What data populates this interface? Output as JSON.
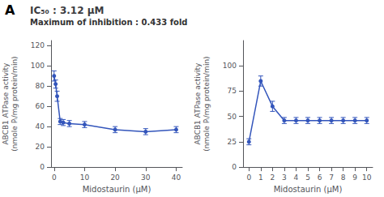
{
  "chart_data": [
    {
      "type": "line",
      "title": "IC₅₀ : 3.12 μM",
      "subtitle": "Maximum of inhibition : 0.433 fold",
      "annotations": [
        "A"
      ],
      "x_label": "Midostaurin (μM)",
      "y_label": "ABCB1 ATPase activity\n(nmole Pᵢ/mg protein/min)",
      "x": [
        0,
        0.5,
        1,
        2,
        3,
        5,
        10,
        20,
        30,
        40
      ],
      "values": [
        90,
        82,
        70,
        45,
        44,
        43,
        42,
        37,
        35,
        37
      ],
      "errors": [
        5,
        4,
        5,
        3,
        3,
        3,
        3,
        3,
        3,
        3
      ],
      "xlim": [
        -1,
        42
      ],
      "ylim": [
        0,
        125
      ],
      "xticks": [
        0,
        10,
        20,
        30,
        40
      ],
      "yticks": [
        0,
        20,
        40,
        60,
        80,
        100,
        120
      ],
      "color": "#3355bb",
      "marker": "circle",
      "line_style": "solid",
      "grid": false
    },
    {
      "type": "line",
      "x_label": "Midostaurin (μM)",
      "y_label": "ABCB1 ATPase activity\n(nmole Pᵢ/mg protein/min)",
      "x": [
        0,
        1,
        2,
        3,
        4,
        5,
        6,
        7,
        8,
        9,
        10
      ],
      "values": [
        25,
        85,
        60,
        46,
        46,
        46,
        46,
        46,
        46,
        46,
        46
      ],
      "errors": [
        3,
        5,
        5,
        3,
        3,
        3,
        3,
        3,
        3,
        3,
        3
      ],
      "xlim": [
        -0.5,
        10.5
      ],
      "ylim": [
        0,
        125
      ],
      "xticks": [
        0,
        1,
        2,
        3,
        4,
        5,
        6,
        7,
        8,
        9,
        10
      ],
      "yticks": [
        0,
        25,
        50,
        75,
        100
      ],
      "color": "#3355bb",
      "marker": "circle",
      "line_style": "solid",
      "grid": false
    }
  ]
}
